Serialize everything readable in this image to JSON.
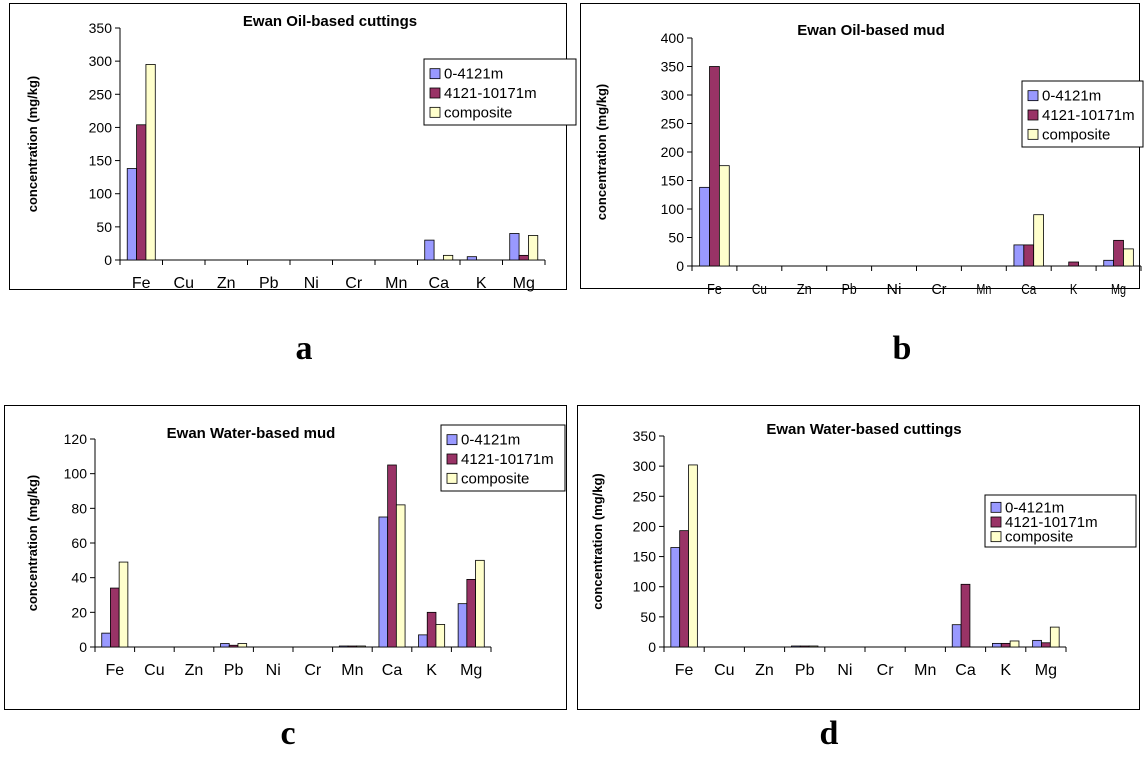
{
  "colors": {
    "series0": "#9999ff",
    "series1": "#993366",
    "series2": "#ffffcc"
  },
  "panels": [
    {
      "letter": "a"
    },
    {
      "letter": "b"
    },
    {
      "letter": "c"
    },
    {
      "letter": "d"
    }
  ],
  "chart_data": [
    {
      "type": "bar",
      "title": "Ewan Oil-based cuttings",
      "xlabel": "",
      "ylabel": "concentration (mg/kg)",
      "categories": [
        "Fe",
        "Cu",
        "Zn",
        "Pb",
        "Ni",
        "Cr",
        "Mn",
        "Ca",
        "K",
        "Mg"
      ],
      "ylim": [
        0,
        350
      ],
      "yticks": [
        0,
        50,
        100,
        150,
        200,
        250,
        300,
        350
      ],
      "legend": "top-right",
      "grid": false,
      "series": [
        {
          "name": "0-4121m",
          "values": [
            138,
            0,
            0,
            0,
            0,
            0,
            0,
            30,
            5,
            40
          ]
        },
        {
          "name": "4121-10171m",
          "values": [
            204,
            0,
            0,
            0,
            0,
            0,
            0,
            0,
            0,
            7
          ]
        },
        {
          "name": "composite",
          "values": [
            295,
            0,
            0,
            0,
            0,
            0,
            0,
            7,
            0,
            37
          ]
        }
      ]
    },
    {
      "type": "bar",
      "title": "Ewan Oil-based mud",
      "xlabel": "",
      "ylabel": "concentration (mg/kg)",
      "categories": [
        "Fe",
        "Cu",
        "Zn",
        "Pb",
        "Ni",
        "Cr",
        "Mn",
        "Ca",
        "K",
        "Mg"
      ],
      "ylim": [
        0,
        400
      ],
      "yticks": [
        0,
        50,
        100,
        150,
        200,
        250,
        300,
        350,
        400
      ],
      "legend": "right",
      "grid": false,
      "series": [
        {
          "name": "0-4121m",
          "values": [
            138,
            0,
            0,
            0,
            0,
            0,
            0,
            37,
            0,
            10
          ]
        },
        {
          "name": "4121-10171m",
          "values": [
            350,
            0,
            0,
            0,
            0,
            0,
            0,
            37,
            7,
            45
          ]
        },
        {
          "name": "composite",
          "values": [
            176,
            0,
            0,
            0,
            0,
            0,
            0,
            90,
            0,
            30
          ]
        }
      ]
    },
    {
      "type": "bar",
      "title": "Ewan Water-based mud",
      "xlabel": "",
      "ylabel": "concentration (mg/kg)",
      "categories": [
        "Fe",
        "Cu",
        "Zn",
        "Pb",
        "Ni",
        "Cr",
        "Mn",
        "Ca",
        "K",
        "Mg"
      ],
      "ylim": [
        0,
        120
      ],
      "yticks": [
        0,
        20,
        40,
        60,
        80,
        100,
        120
      ],
      "legend": "top-right",
      "grid": false,
      "series": [
        {
          "name": "0-4121m",
          "values": [
            8,
            0,
            0,
            2,
            0,
            0,
            0.5,
            75,
            7,
            25
          ]
        },
        {
          "name": "4121-10171m",
          "values": [
            34,
            0,
            0,
            1,
            0,
            0,
            0.5,
            105,
            20,
            39
          ]
        },
        {
          "name": "composite",
          "values": [
            49,
            0,
            0,
            2,
            0,
            0,
            0.5,
            82,
            13,
            50
          ]
        }
      ]
    },
    {
      "type": "bar",
      "title": "Ewan Water-based cuttings",
      "xlabel": "",
      "ylabel": "concentration (mg/kg)",
      "categories": [
        "Fe",
        "Cu",
        "Zn",
        "Pb",
        "Ni",
        "Cr",
        "Mn",
        "Ca",
        "K",
        "Mg"
      ],
      "ylim": [
        0,
        350
      ],
      "yticks": [
        0,
        50,
        100,
        150,
        200,
        250,
        300,
        350
      ],
      "legend": "right",
      "grid": false,
      "series": [
        {
          "name": "0-4121m",
          "values": [
            165,
            0,
            0,
            1,
            0,
            0,
            0,
            37,
            6,
            11
          ]
        },
        {
          "name": "4121-10171m",
          "values": [
            193,
            0,
            0,
            1,
            0,
            0,
            0,
            104,
            6,
            7
          ]
        },
        {
          "name": "composite",
          "values": [
            302,
            0,
            0,
            1,
            0,
            0,
            0,
            0,
            10,
            33
          ]
        }
      ]
    }
  ]
}
